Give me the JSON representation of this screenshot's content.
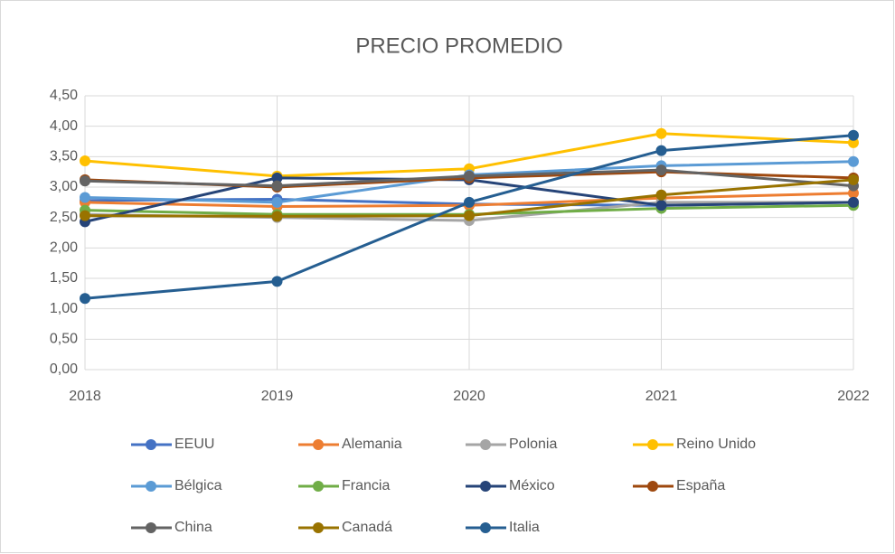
{
  "chart_data": {
    "type": "line",
    "title": "PRECIO PROMEDIO",
    "categories": [
      "2018",
      "2019",
      "2020",
      "2021",
      "2022"
    ],
    "ylim": [
      0,
      4.5
    ],
    "yticks": [
      {
        "value": 0,
        "label": "0,00"
      },
      {
        "value": 0.5,
        "label": "0,50"
      },
      {
        "value": 1,
        "label": "1,00"
      },
      {
        "value": 1.5,
        "label": "1,50"
      },
      {
        "value": 2,
        "label": "2,00"
      },
      {
        "value": 2.5,
        "label": "2,50"
      },
      {
        "value": 3,
        "label": "3,00"
      },
      {
        "value": 3.5,
        "label": "3,50"
      },
      {
        "value": 4,
        "label": "4,00"
      },
      {
        "value": 4.5,
        "label": "4,50"
      }
    ],
    "grid": true,
    "legend": "bottom",
    "series": [
      {
        "name": "EEUU",
        "color": "#4472c4",
        "values": [
          2.78,
          2.8,
          2.72,
          2.7,
          2.75
        ]
      },
      {
        "name": "Alemania",
        "color": "#ed7d31",
        "values": [
          2.75,
          2.68,
          2.7,
          2.82,
          2.9
        ]
      },
      {
        "name": "Polonia",
        "color": "#a5a5a5",
        "values": [
          2.55,
          2.5,
          2.45,
          2.75,
          2.75
        ]
      },
      {
        "name": "Reino Unido",
        "color": "#ffc000",
        "values": [
          3.43,
          3.18,
          3.3,
          3.88,
          3.73
        ]
      },
      {
        "name": "Bélgica",
        "color": "#5b9bd5",
        "values": [
          2.83,
          2.75,
          3.2,
          3.35,
          3.42
        ]
      },
      {
        "name": "Francia",
        "color": "#70ad47",
        "values": [
          2.62,
          2.55,
          2.55,
          2.65,
          2.7
        ]
      },
      {
        "name": "México",
        "color": "#264478",
        "values": [
          2.43,
          3.15,
          3.12,
          2.7,
          2.75
        ]
      },
      {
        "name": "España",
        "color": "#9e480e",
        "values": [
          3.12,
          3.0,
          3.15,
          3.25,
          3.15
        ]
      },
      {
        "name": "China",
        "color": "#636363",
        "values": [
          3.1,
          3.02,
          3.18,
          3.28,
          3.02
        ]
      },
      {
        "name": "Canadá",
        "color": "#997300",
        "values": [
          2.53,
          2.52,
          2.53,
          2.87,
          3.12
        ]
      },
      {
        "name": "Italia",
        "color": "#255e91",
        "values": [
          1.17,
          1.45,
          2.75,
          3.6,
          3.85
        ]
      }
    ]
  }
}
